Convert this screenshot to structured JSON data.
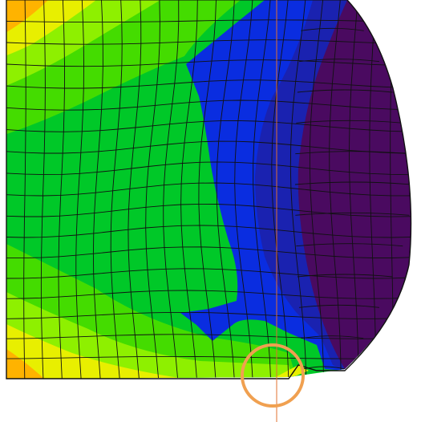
{
  "colors": {
    "background": "#ffffff",
    "mesh_line": "#111111",
    "marker_ring": "#f0a050",
    "guide_line": "#e07030",
    "contour_bands": [
      {
        "name": "orange",
        "color": "#ffb300"
      },
      {
        "name": "yellow",
        "color": "#e8ef00"
      },
      {
        "name": "yellow-green",
        "color": "#8ef000"
      },
      {
        "name": "light-green",
        "color": "#44dc00"
      },
      {
        "name": "green",
        "color": "#00c828"
      },
      {
        "name": "blue",
        "color": "#0a2de0"
      },
      {
        "name": "dark-blue",
        "color": "#1a22b0"
      },
      {
        "name": "purple",
        "color": "#4a0a60"
      }
    ]
  },
  "legend": [],
  "annotations": []
}
